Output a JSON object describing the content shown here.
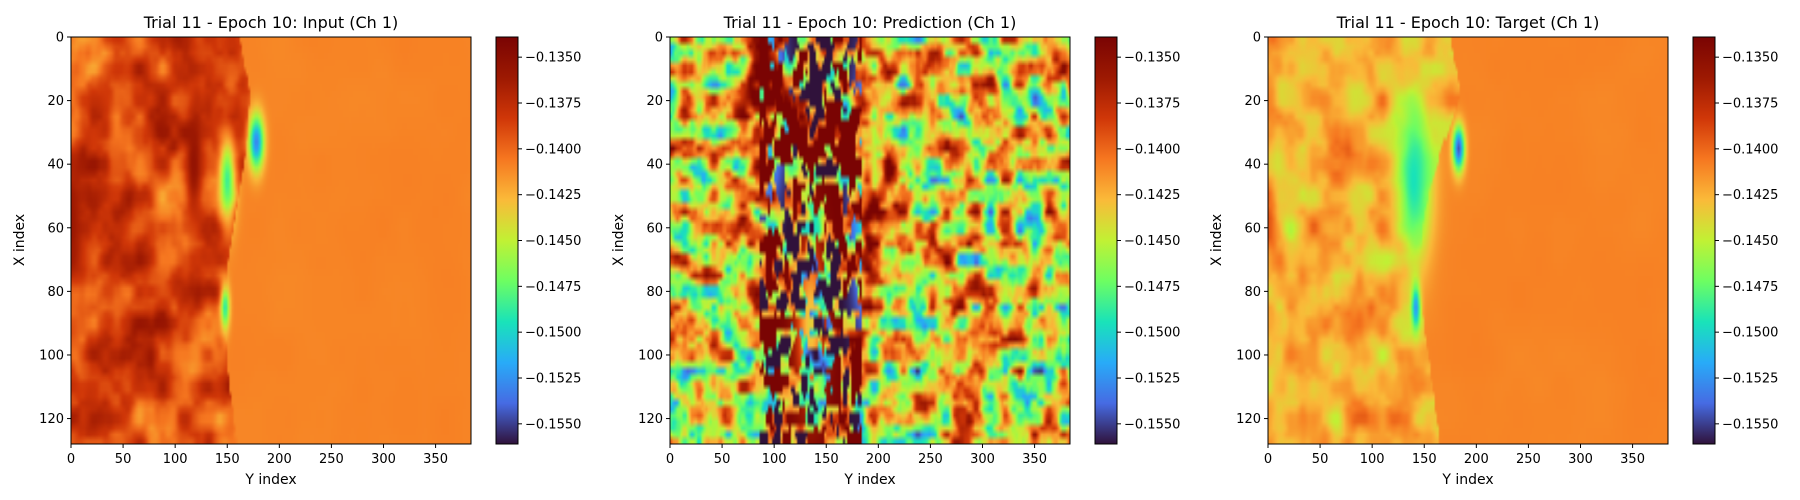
{
  "chart_data": [
    {
      "type": "heatmap",
      "title": "Trial 11 - Epoch 10: Input (Ch 1)",
      "xlabel": "Y index",
      "ylabel": "X index",
      "xlim": [
        0,
        384
      ],
      "ylim": [
        128,
        0
      ],
      "xticks": [
        0,
        50,
        100,
        150,
        200,
        250,
        300,
        350
      ],
      "yticks": [
        0,
        20,
        40,
        60,
        80,
        100,
        120
      ],
      "colormap": "turbo",
      "clim": [
        -0.1561,
        -0.1339
      ],
      "colorbar_ticks": [
        "-0.1350",
        "-0.1375",
        "-0.1400",
        "-0.1425",
        "-0.1450",
        "-0.1475",
        "-0.1500",
        "-0.1525",
        "-0.1550"
      ],
      "field": {
        "background": -0.141,
        "left_band": {
          "x_range": [
            0,
            160
          ],
          "mean": -0.139,
          "variation": 0.004
        },
        "interface_x": [
          162,
          172,
          168,
          158,
          150,
          148,
          152,
          160
        ],
        "features": [
          {
            "x": 178,
            "y": 33,
            "value": -0.153,
            "sx": 5,
            "sy": 6
          },
          {
            "x": 150,
            "y": 45,
            "value": -0.1485,
            "sx": 6,
            "sy": 10
          },
          {
            "x": 148,
            "y": 85,
            "value": -0.149,
            "sx": 3,
            "sy": 5
          },
          {
            "x": 118,
            "y": 40,
            "value": -0.1355,
            "sx": 6,
            "sy": 12
          },
          {
            "x": 0,
            "y": 60,
            "value": -0.136,
            "sx": 10,
            "sy": 15
          }
        ]
      }
    },
    {
      "type": "heatmap",
      "title": "Trial 11 - Epoch 10: Prediction (Ch 1)",
      "xlabel": "Y index",
      "ylabel": "X index",
      "xlim": [
        0,
        384
      ],
      "ylim": [
        128,
        0
      ],
      "xticks": [
        0,
        50,
        100,
        150,
        200,
        250,
        300,
        350
      ],
      "yticks": [
        0,
        20,
        40,
        60,
        80,
        100,
        120
      ],
      "colormap": "turbo",
      "clim": [
        -0.1561,
        -0.1339
      ],
      "colorbar_ticks": [
        "-0.1350",
        "-0.1375",
        "-0.1400",
        "-0.1425",
        "-0.1450",
        "-0.1475",
        "-0.1500",
        "-0.1525",
        "-0.1550"
      ],
      "field": {
        "background": -0.144,
        "variation": 0.011,
        "core_band": {
          "x_range": [
            85,
            185
          ],
          "extreme_high": -0.1339,
          "extreme_low": -0.1561
        },
        "features": [
          {
            "x": 135,
            "y": 90,
            "value": -0.1561,
            "sx": 10,
            "sy": 18
          },
          {
            "x": 90,
            "y": 20,
            "value": -0.1339,
            "sx": 12,
            "sy": 20
          },
          {
            "x": 190,
            "y": 50,
            "value": -0.1339,
            "sx": 10,
            "sy": 25
          }
        ]
      }
    },
    {
      "type": "heatmap",
      "title": "Trial 11 - Epoch 10: Target (Ch 1)",
      "xlabel": "Y index",
      "ylabel": "X index",
      "xlim": [
        0,
        384
      ],
      "ylim": [
        128,
        0
      ],
      "xticks": [
        0,
        50,
        100,
        150,
        200,
        250,
        300,
        350
      ],
      "yticks": [
        0,
        20,
        40,
        60,
        80,
        100,
        120
      ],
      "colormap": "turbo",
      "clim": [
        -0.1561,
        -0.1339
      ],
      "colorbar_ticks": [
        "-0.1350",
        "-0.1375",
        "-0.1400",
        "-0.1425",
        "-0.1450",
        "-0.1475",
        "-0.1500",
        "-0.1525",
        "-0.1550"
      ],
      "field": {
        "background": -0.141,
        "left_band": {
          "x_range": [
            0,
            150
          ],
          "mean": -0.1425,
          "variation": 0.0035
        },
        "interface_x": [
          175,
          185,
          165,
          150,
          145,
          150,
          158,
          165
        ],
        "features": [
          {
            "x": 140,
            "y": 45,
            "value": -0.1495,
            "sx": 12,
            "sy": 18
          },
          {
            "x": 183,
            "y": 35,
            "value": -0.1545,
            "sx": 4,
            "sy": 5
          },
          {
            "x": 142,
            "y": 85,
            "value": -0.1525,
            "sx": 3,
            "sy": 5
          }
        ]
      }
    }
  ]
}
